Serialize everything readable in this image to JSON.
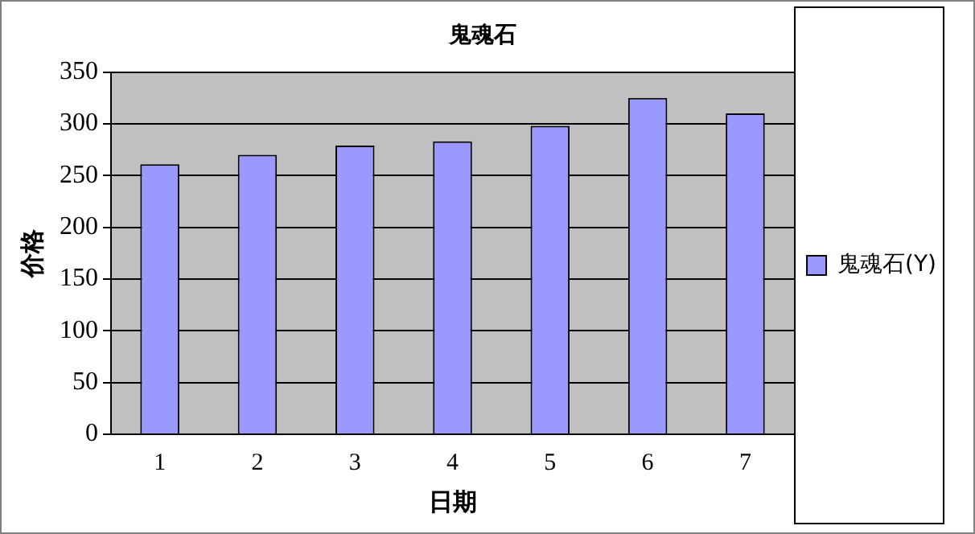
{
  "chart_data": {
    "type": "bar",
    "title": "鬼魂石",
    "xlabel": "日期",
    "ylabel": "价格",
    "categories": [
      "1",
      "2",
      "3",
      "4",
      "5",
      "6",
      "7"
    ],
    "series": [
      {
        "name": "鬼魂石(Y)",
        "color": "#9999ff",
        "values": [
          261,
          270,
          279,
          283,
          298,
          325,
          310
        ]
      }
    ],
    "ylim": [
      0,
      350
    ],
    "yticks": [
      0,
      50,
      100,
      150,
      200,
      250,
      300,
      350
    ],
    "grid": "y",
    "legend": "right"
  }
}
